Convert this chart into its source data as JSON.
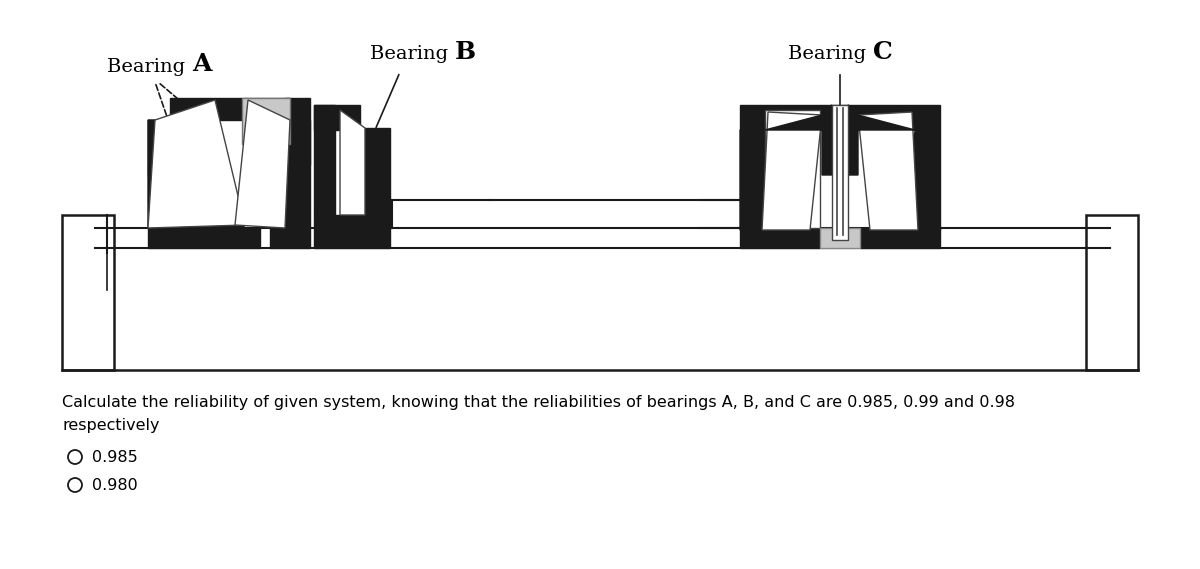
{
  "background_color": "#ffffff",
  "question_text": "Calculate the reliability of given system, knowing that the reliabilities of bearings A, B, and C are 0.985, 0.99 and 0.98\nrespectively",
  "options": [
    "0.985",
    "0.980"
  ],
  "fig_width": 12.0,
  "fig_height": 5.69,
  "black": "#1a1a1a",
  "lightgray": "#c8c8c8",
  "white": "#ffffff",
  "darkgray": "#444444"
}
